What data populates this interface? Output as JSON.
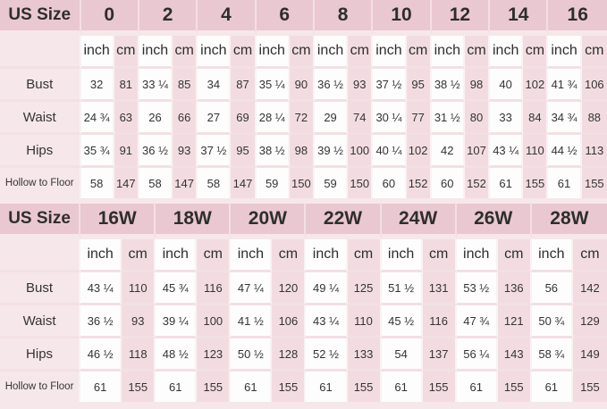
{
  "colors": {
    "page_bg": "#f6e7eb",
    "header_bg": "#eac8d1",
    "inch_cell_bg": "#fefdfe",
    "cm_cell_bg": "#f2dce2",
    "row_separator": "#f2e0e5",
    "column_separator": "#f9f2f4",
    "text": "#333333"
  },
  "chart_data": [
    {
      "type": "table",
      "corner_label": "US Size",
      "unit_labels": [
        "inch",
        "cm"
      ],
      "sizes": [
        "0",
        "2",
        "4",
        "6",
        "8",
        "10",
        "12",
        "14",
        "16"
      ],
      "rows": [
        {
          "label": "Bust",
          "values": [
            [
              "32",
              "81"
            ],
            [
              "33 ¼",
              "85"
            ],
            [
              "34",
              "87"
            ],
            [
              "35 ¼",
              "90"
            ],
            [
              "36 ½",
              "93"
            ],
            [
              "37 ½",
              "95"
            ],
            [
              "38 ½",
              "98"
            ],
            [
              "40",
              "102"
            ],
            [
              "41 ¾",
              "106"
            ]
          ]
        },
        {
          "label": "Waist",
          "values": [
            [
              "24 ¾",
              "63"
            ],
            [
              "26",
              "66"
            ],
            [
              "27",
              "69"
            ],
            [
              "28 ¼",
              "72"
            ],
            [
              "29",
              "74"
            ],
            [
              "30 ¼",
              "77"
            ],
            [
              "31 ½",
              "80"
            ],
            [
              "33",
              "84"
            ],
            [
              "34 ¾",
              "88"
            ]
          ]
        },
        {
          "label": "Hips",
          "values": [
            [
              "35 ¾",
              "91"
            ],
            [
              "36 ½",
              "93"
            ],
            [
              "37 ½",
              "95"
            ],
            [
              "38 ½",
              "98"
            ],
            [
              "39 ½",
              "100"
            ],
            [
              "40 ¼",
              "102"
            ],
            [
              "42",
              "107"
            ],
            [
              "43 ¼",
              "110"
            ],
            [
              "44 ½",
              "113"
            ]
          ]
        },
        {
          "label": "Hollow to Floor",
          "values": [
            [
              "58",
              "147"
            ],
            [
              "58",
              "147"
            ],
            [
              "58",
              "147"
            ],
            [
              "59",
              "150"
            ],
            [
              "59",
              "150"
            ],
            [
              "60",
              "152"
            ],
            [
              "60",
              "152"
            ],
            [
              "61",
              "155"
            ],
            [
              "61",
              "155"
            ]
          ]
        }
      ]
    },
    {
      "type": "table",
      "corner_label": "US Size",
      "unit_labels": [
        "inch",
        "cm"
      ],
      "sizes": [
        "16W",
        "18W",
        "20W",
        "22W",
        "24W",
        "26W",
        "28W"
      ],
      "rows": [
        {
          "label": "Bust",
          "values": [
            [
              "43 ¼",
              "110"
            ],
            [
              "45 ¾",
              "116"
            ],
            [
              "47 ¼",
              "120"
            ],
            [
              "49 ¼",
              "125"
            ],
            [
              "51 ½",
              "131"
            ],
            [
              "53 ½",
              "136"
            ],
            [
              "56",
              "142"
            ]
          ]
        },
        {
          "label": "Waist",
          "values": [
            [
              "36 ½",
              "93"
            ],
            [
              "39 ¼",
              "100"
            ],
            [
              "41 ½",
              "106"
            ],
            [
              "43 ¼",
              "110"
            ],
            [
              "45 ½",
              "116"
            ],
            [
              "47 ¾",
              "121"
            ],
            [
              "50 ¾",
              "129"
            ]
          ]
        },
        {
          "label": "Hips",
          "values": [
            [
              "46 ½",
              "118"
            ],
            [
              "48 ½",
              "123"
            ],
            [
              "50 ½",
              "128"
            ],
            [
              "52 ½",
              "133"
            ],
            [
              "54",
              "137"
            ],
            [
              "56 ¼",
              "143"
            ],
            [
              "58 ¾",
              "149"
            ]
          ]
        },
        {
          "label": "Hollow to Floor",
          "values": [
            [
              "61",
              "155"
            ],
            [
              "61",
              "155"
            ],
            [
              "61",
              "155"
            ],
            [
              "61",
              "155"
            ],
            [
              "61",
              "155"
            ],
            [
              "61",
              "155"
            ],
            [
              "61",
              "155"
            ]
          ]
        }
      ]
    }
  ]
}
